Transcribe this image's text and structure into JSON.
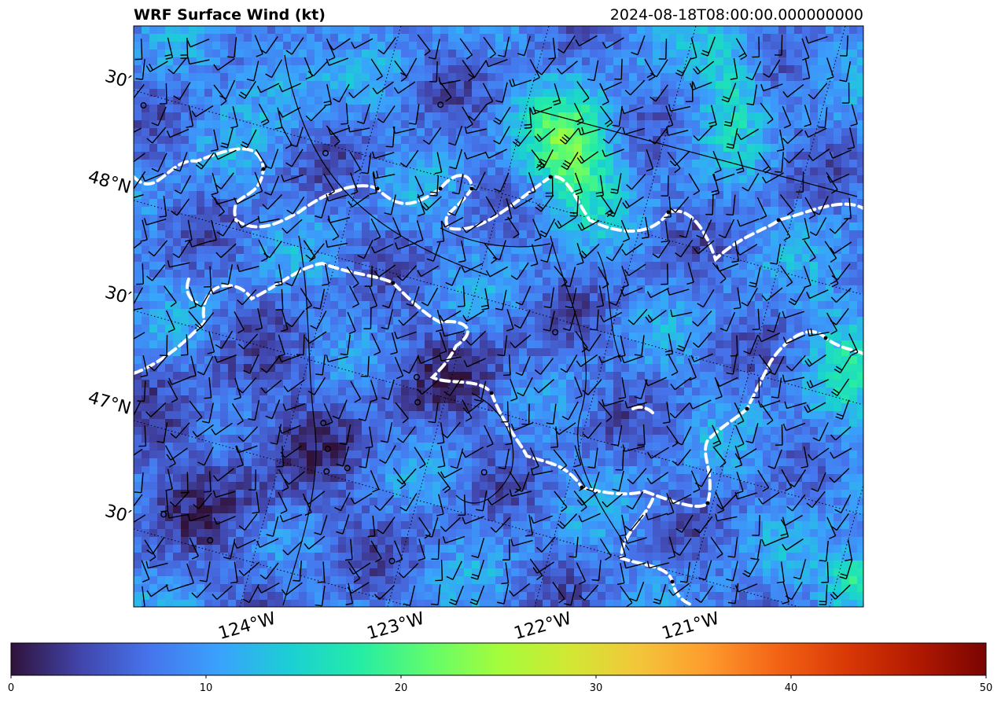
{
  "figure": {
    "title_left": "WRF Surface Wind (kt)",
    "title_right": "2024-08-18T08:00:00.000000000"
  },
  "map": {
    "lat_labels": [
      {
        "text": "30′",
        "lat": 48.5
      },
      {
        "text": "48°N",
        "lat": 48.0
      },
      {
        "text": "30′",
        "lat": 47.5
      },
      {
        "text": "47°N",
        "lat": 47.0
      },
      {
        "text": "30′",
        "lat": 46.5
      }
    ],
    "lon_labels": [
      {
        "text": "124°W",
        "lon": -124
      },
      {
        "text": "123°W",
        "lon": -123
      },
      {
        "text": "122°W",
        "lon": -122
      },
      {
        "text": "121°W",
        "lon": -121
      }
    ],
    "extent": {
      "lon_min": -124.6,
      "lon_max": -120.3,
      "lat_min": 46.2,
      "lat_max": 48.8
    },
    "colormap": "turbo",
    "boundary_color": "#ffffff"
  },
  "colorbar": {
    "vmin": 0,
    "vmax": 50,
    "ticks": [
      0,
      10,
      20,
      30,
      40,
      50
    ],
    "tick_labels": [
      "0",
      "10",
      "20",
      "30",
      "40",
      "50"
    ],
    "colors": [
      "#30123b",
      "#4145ab",
      "#4675ed",
      "#39a2fc",
      "#1bcfd4",
      "#24eca6",
      "#61fc6c",
      "#a4fc3b",
      "#d1e834",
      "#f3c63a",
      "#fe9b2d",
      "#f36315",
      "#d93806",
      "#b11901",
      "#7a0403"
    ]
  }
}
